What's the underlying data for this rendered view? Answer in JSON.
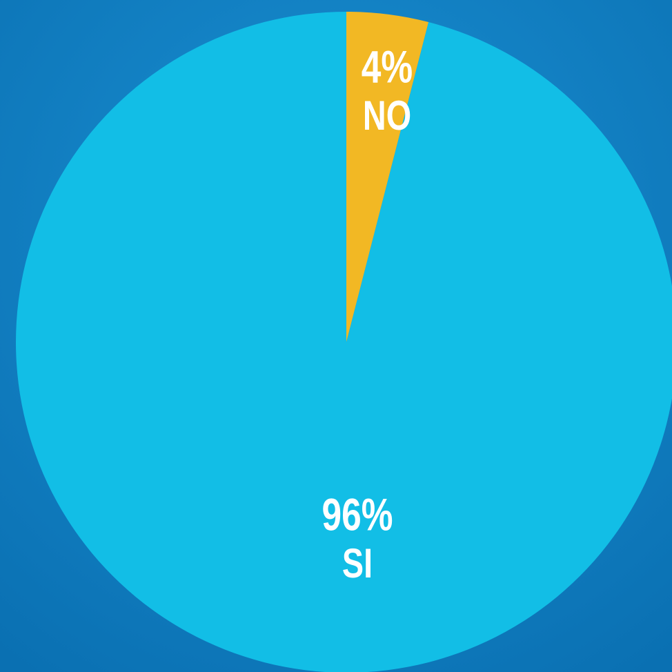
{
  "chart_data": {
    "type": "pie",
    "categories": [
      "NO",
      "SI"
    ],
    "values": [
      4,
      96
    ],
    "value_labels": [
      "4%",
      "96%"
    ],
    "colors": [
      "#f2b824",
      "#12bee6"
    ]
  }
}
